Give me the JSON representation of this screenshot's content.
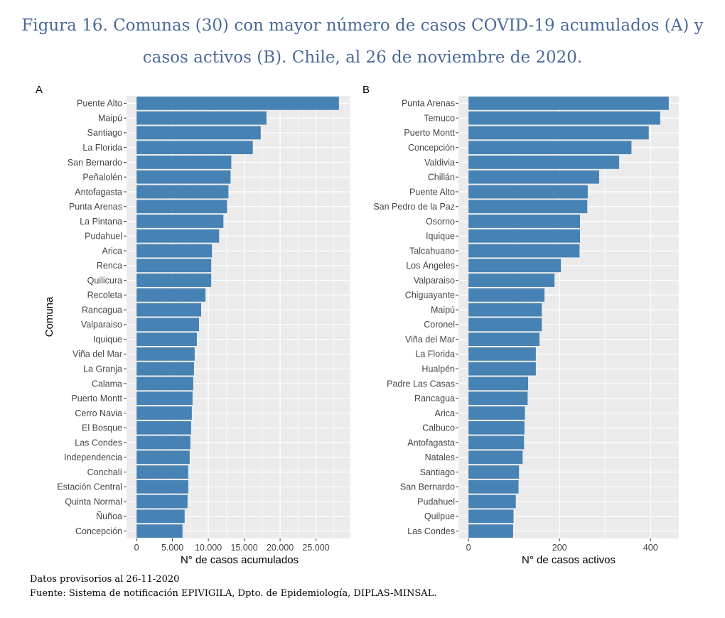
{
  "title_line1": "Figura 16. Comunas (30) con mayor número de casos COVID-19 acumulados (A) y",
  "title_line2": "casos activos (B). Chile, al 26 de noviembre de 2020.",
  "footer_line1": "Datos provisorios al 26-11-2020",
  "footer_line2": "Fuente: Sistema de notificación EPIVIGILA, Dpto. de Epidemiología, DIPLAS-MINSAL.",
  "colors": {
    "bar": "#4682b4",
    "panel_bg": "#ebebeb",
    "grid": "#ffffff"
  },
  "chart_data": [
    {
      "type": "bar",
      "orientation": "horizontal",
      "panel_label": "A",
      "ylabel": "Comuna",
      "xlabel": "N° de casos acumulados",
      "xlim": [
        -1400,
        29800
      ],
      "xticks": [
        0,
        5000,
        10000,
        15000,
        20000,
        25000
      ],
      "xtick_labels": [
        "0",
        "5.000",
        "10.000",
        "15.000",
        "20.000",
        "25.000"
      ],
      "grid": true,
      "categories": [
        "Puente Alto",
        "Maipú",
        "Santiago",
        "La Florida",
        "San Bernardo",
        "Peñalolén",
        "Antofagasta",
        "Punta Arenas",
        "La Pintana",
        "Pudahuel",
        "Arica",
        "Renca",
        "Quilicura",
        "Recoleta",
        "Rancagua",
        "Valparaiso",
        "Iquique",
        "Viña del Mar",
        "La Granja",
        "Calama",
        "Puerto Montt",
        "Cerro Navia",
        "El Bosque",
        "Las Condes",
        "Independencia",
        "Conchalí",
        "Estación Central",
        "Quinta Normal",
        "Ñuñoa",
        "Concepción"
      ],
      "values": [
        28200,
        18100,
        17300,
        16200,
        13200,
        13100,
        12800,
        12600,
        12100,
        11500,
        10500,
        10400,
        10400,
        9600,
        9000,
        8700,
        8400,
        8100,
        8000,
        7900,
        7800,
        7700,
        7600,
        7500,
        7400,
        7200,
        7200,
        7100,
        6700,
        6400
      ]
    },
    {
      "type": "bar",
      "orientation": "horizontal",
      "panel_label": "B",
      "ylabel": "",
      "xlabel": "N° de casos activos",
      "xlim": [
        -22,
        462
      ],
      "xticks": [
        0,
        200,
        400
      ],
      "xtick_labels": [
        "0",
        "200",
        "400"
      ],
      "grid": true,
      "categories": [
        "Punta Arenas",
        "Temuco",
        "Puerto Montt",
        "Concepción",
        "Valdivia",
        "Chillán",
        "Puente Alto",
        "San Pedro de la Paz",
        "Osorno",
        "Iquique",
        "Talcahuano",
        "Los Ángeles",
        "Valparaiso",
        "Chiguayante",
        "Maipú",
        "Coronel",
        "Viña del Mar",
        "La Florida",
        "Hualpén",
        "Padre Las Casas",
        "Rancagua",
        "Arica",
        "Calbuco",
        "Antofagasta",
        "Natales",
        "Santiago",
        "San Bernardo",
        "Pudahuel",
        "Quilpue",
        "Las Condes"
      ],
      "values": [
        440,
        421,
        396,
        358,
        331,
        287,
        262,
        261,
        245,
        245,
        244,
        203,
        189,
        167,
        161,
        161,
        156,
        148,
        148,
        131,
        130,
        124,
        123,
        122,
        119,
        111,
        110,
        104,
        99,
        98
      ]
    }
  ]
}
